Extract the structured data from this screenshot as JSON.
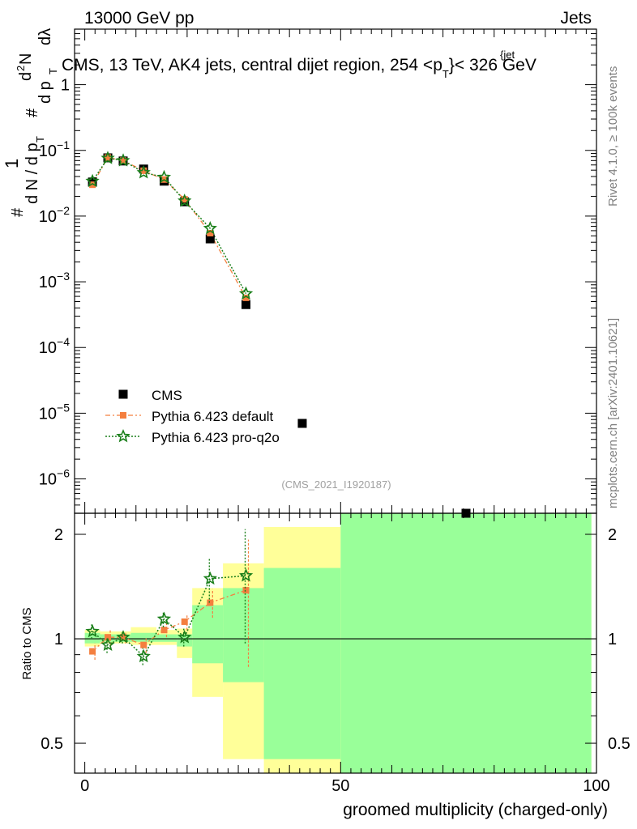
{
  "header": {
    "left": "13000 GeV pp",
    "right": "Jets"
  },
  "plot_title_parts": {
    "main": "CMS, 13 TeV, AK4 jets, central dijet region, 254 <",
    "p": "p",
    "sub": "T",
    "sup": "{jet",
    "tail": "}< 326 GeV"
  },
  "ylabel_main": "1/dN/dpT  # d²N/dpT dλ",
  "ylabel_parts": {
    "hash": "#",
    "one": "1",
    "dNdp": "d N / d p",
    "T": "T",
    "hash2": "#",
    "dp": "d p",
    "d2N": "d",
    "two": "2",
    "N": "N",
    "dl": "dλ"
  },
  "side_labels": {
    "rivet": "Rivet 4.1.0, ≥ 100k events",
    "mcplots": "mcplots.cern.ch [arXiv:2401.10621]"
  },
  "analysis_ref": "(CMS_2021_I1920187)",
  "xlabel": "groomed multiplicity (charged-only)",
  "ratio_ylabel": "Ratio to CMS",
  "colors": {
    "data": "#000000",
    "default": "#f47f3f",
    "proq2o": "#1a7f1a",
    "band_yellow": "#ffff99",
    "band_green": "#99ff99"
  },
  "chart_data": [
    {
      "type": "scatter",
      "title": "CMS, 13 TeV, AK4 jets, central dijet region, 254 < pT(jet) < 326 GeV",
      "xlabel": "",
      "ylabel": "1/dN/dpT d²N/dpT dλ",
      "yscale": "log",
      "xlim": [
        -2,
        100
      ],
      "ylim": [
        3e-07,
        7
      ],
      "yticks": [
        "10^-6",
        "10^-5",
        "10^-4",
        "10^-3",
        "10^-2",
        "10^-1",
        "1"
      ],
      "legend": [
        "CMS",
        "Pythia 6.423 default",
        "Pythia 6.423 pro-q2o"
      ],
      "series": [
        {
          "name": "CMS",
          "x": [
            1.5,
            4.5,
            7.5,
            11.5,
            15.5,
            19.5,
            24.5,
            31.5,
            42.5,
            74.5
          ],
          "y": [
            0.033,
            0.077,
            0.069,
            0.052,
            0.034,
            0.0165,
            0.0045,
            0.00045,
            7e-06,
            3e-07
          ]
        },
        {
          "name": "Pythia 6.423 default",
          "x": [
            1.5,
            4.5,
            7.5,
            11.5,
            15.5,
            19.5,
            24.5,
            31.5
          ],
          "y": [
            0.03,
            0.078,
            0.07,
            0.049,
            0.036,
            0.018,
            0.0055,
            0.00057
          ]
        },
        {
          "name": "Pythia 6.423 pro-q2o",
          "x": [
            1.5,
            4.5,
            7.5,
            11.5,
            15.5,
            19.5,
            24.5,
            31.5
          ],
          "y": [
            0.034,
            0.076,
            0.07,
            0.046,
            0.039,
            0.017,
            0.0065,
            0.00066
          ]
        }
      ]
    },
    {
      "type": "line",
      "title": "",
      "xlabel": "groomed multiplicity (charged-only)",
      "ylabel": "Ratio to CMS",
      "yscale": "log",
      "xlim": [
        -2,
        100
      ],
      "ylim": [
        0.41,
        2.3
      ],
      "yticks": [
        "0.5",
        "1",
        "2"
      ],
      "xticks": [
        "0",
        "50",
        "100"
      ],
      "uncertainty_bands": [
        {
          "x0": 0,
          "x1": 3,
          "y_lo": 0.95,
          "y_hi": 1.06,
          "g_lo": 0.97,
          "g_hi": 1.04
        },
        {
          "x0": 3,
          "x1": 6,
          "y_lo": 0.97,
          "y_hi": 1.05,
          "g_lo": 0.98,
          "g_hi": 1.03
        },
        {
          "x0": 6,
          "x1": 9,
          "y_lo": 0.97,
          "y_hi": 1.05,
          "g_lo": 0.98,
          "g_hi": 1.03
        },
        {
          "x0": 9,
          "x1": 14,
          "y_lo": 0.96,
          "y_hi": 1.08,
          "g_lo": 0.98,
          "g_hi": 1.04
        },
        {
          "x0": 14,
          "x1": 18,
          "y_lo": 0.96,
          "y_hi": 1.06,
          "g_lo": 0.98,
          "g_hi": 1.03
        },
        {
          "x0": 18,
          "x1": 21,
          "y_lo": 0.88,
          "y_hi": 1.07,
          "g_lo": 0.95,
          "g_hi": 1.03
        },
        {
          "x0": 21,
          "x1": 27,
          "y_lo": 0.68,
          "y_hi": 1.4,
          "g_lo": 0.85,
          "g_hi": 1.25
        },
        {
          "x0": 27,
          "x1": 35,
          "y_lo": 0.45,
          "y_hi": 1.65,
          "g_lo": 0.75,
          "g_hi": 1.4
        },
        {
          "x0": 35,
          "x1": 50,
          "y_lo": 0.41,
          "y_hi": 2.1,
          "g_lo": 0.45,
          "g_hi": 1.6
        },
        {
          "x0": 50,
          "x1": 99,
          "y_lo": 0.41,
          "y_hi": 2.3,
          "g_lo": 0.41,
          "g_hi": 2.3
        }
      ],
      "series": [
        {
          "name": "Pythia 6.423 default",
          "x": [
            1.5,
            4.5,
            7.5,
            11.5,
            15.5,
            19.5,
            24.5,
            31.5
          ],
          "y": [
            0.92,
            1.01,
            1.01,
            0.96,
            1.06,
            1.12,
            1.27,
            1.38
          ],
          "err": [
            0.05,
            0.05,
            0.04,
            0.05,
            0.05,
            0.06,
            0.12,
            0.55
          ]
        },
        {
          "name": "Pythia 6.423 pro-q2o",
          "x": [
            1.5,
            4.5,
            7.5,
            11.5,
            15.5,
            19.5,
            24.5,
            31.5
          ],
          "y": [
            1.05,
            0.96,
            1.01,
            0.89,
            1.14,
            1.01,
            1.49,
            1.52
          ],
          "err": [
            0.05,
            0.05,
            0.04,
            0.05,
            0.06,
            0.06,
            0.22,
            0.55
          ]
        }
      ]
    }
  ]
}
